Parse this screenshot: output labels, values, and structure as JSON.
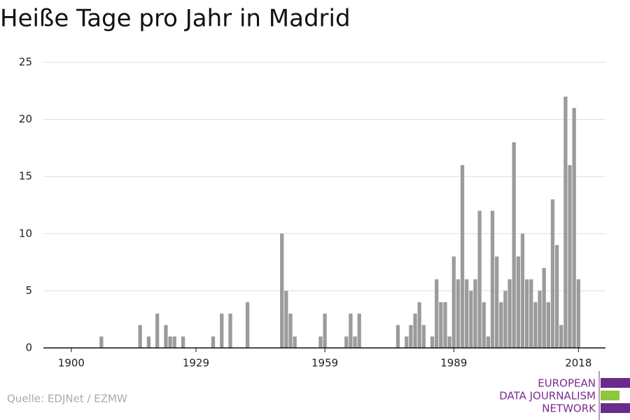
{
  "chart_data": {
    "type": "bar",
    "title": "Heiße Tage pro Jahr in Madrid",
    "source": "Quelle: EDJNet / EZMW",
    "logo": [
      "EUROPEAN",
      "DATA JOURNALISM",
      "NETWORK"
    ],
    "x": [
      1907,
      1916,
      1918,
      1920,
      1922,
      1923,
      1924,
      1926,
      1933,
      1935,
      1937,
      1941,
      1949,
      1950,
      1951,
      1952,
      1958,
      1959,
      1964,
      1965,
      1966,
      1967,
      1976,
      1978,
      1979,
      1980,
      1981,
      1982,
      1984,
      1985,
      1986,
      1987,
      1988,
      1989,
      1990,
      1991,
      1992,
      1993,
      1994,
      1995,
      1996,
      1997,
      1998,
      1999,
      2000,
      2001,
      2002,
      2003,
      2004,
      2005,
      2006,
      2007,
      2008,
      2009,
      2010,
      2011,
      2012,
      2013,
      2014,
      2015,
      2016,
      2017,
      2018
    ],
    "values": [
      1,
      2,
      1,
      3,
      2,
      1,
      1,
      1,
      1,
      3,
      3,
      4,
      10,
      5,
      3,
      1,
      1,
      3,
      1,
      3,
      1,
      3,
      2,
      1,
      2,
      3,
      4,
      2,
      1,
      6,
      4,
      4,
      1,
      8,
      6,
      16,
      6,
      5,
      6,
      12,
      4,
      1,
      12,
      8,
      4,
      5,
      6,
      18,
      8,
      10,
      6,
      6,
      4,
      5,
      7,
      4,
      13,
      9,
      2,
      22,
      16,
      21,
      6
    ],
    "color": "#9b9b9b",
    "xlim": [
      1893.5,
      2024.3
    ],
    "xticks": [
      1900,
      1929,
      1959,
      1989,
      2018
    ],
    "ylim": [
      0,
      25
    ],
    "yticks": [
      0,
      5,
      10,
      15,
      20,
      25
    ],
    "grid": true
  }
}
